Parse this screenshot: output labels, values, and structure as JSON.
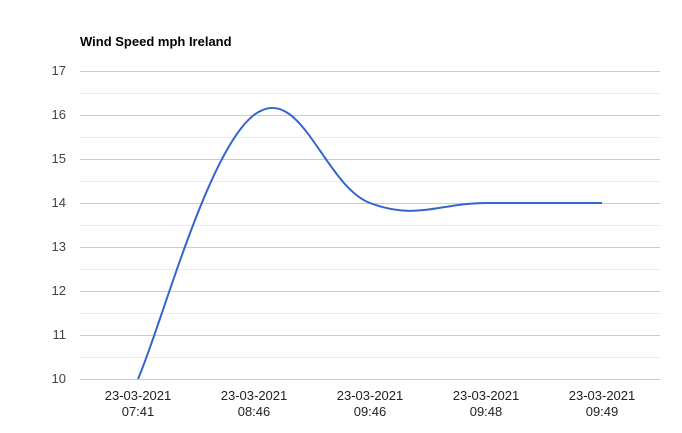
{
  "chart_data": {
    "type": "line",
    "title": "Wind Speed mph Ireland",
    "xlabel": "",
    "ylabel": "",
    "categories": [
      "23-03-2021 07:41",
      "23-03-2021 08:46",
      "23-03-2021 09:46",
      "23-03-2021 09:48",
      "23-03-2021 09:49"
    ],
    "x_labels": [
      {
        "date": "23-03-2021",
        "time": "07:41"
      },
      {
        "date": "23-03-2021",
        "time": "08:46"
      },
      {
        "date": "23-03-2021",
        "time": "09:46"
      },
      {
        "date": "23-03-2021",
        "time": "09:48"
      },
      {
        "date": "23-03-2021",
        "time": "09:49"
      }
    ],
    "series": [
      {
        "name": "Wind Speed mph",
        "values": [
          10,
          16,
          14,
          14,
          14
        ],
        "color": "#3366cc"
      }
    ],
    "ylim": [
      10,
      17
    ],
    "yticks": [
      "17",
      "16",
      "15",
      "14",
      "13",
      "12",
      "11",
      "10"
    ],
    "grid": true,
    "curve": "smooth",
    "legend": "none"
  }
}
